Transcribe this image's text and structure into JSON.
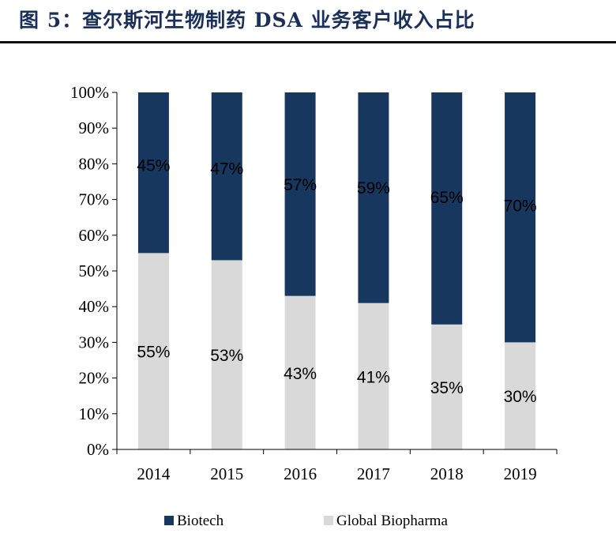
{
  "figure": {
    "title": "图 5：查尔斯河生物制药 DSA 业务客户收入占比"
  },
  "chart_data": {
    "type": "bar",
    "stacked": true,
    "categories": [
      "2014",
      "2015",
      "2016",
      "2017",
      "2018",
      "2019"
    ],
    "series": [
      {
        "name": "Global Biopharma",
        "values": [
          55,
          53,
          43,
          41,
          35,
          30
        ],
        "color": "#d9d9d9"
      },
      {
        "name": "Biotech",
        "values": [
          45,
          47,
          57,
          59,
          65,
          70
        ],
        "color": "#17375e"
      }
    ],
    "value_labels": [
      [
        "55%",
        "53%",
        "43%",
        "41%",
        "35%",
        "30%"
      ],
      [
        "45%",
        "47%",
        "57%",
        "59%",
        "65%",
        "70%"
      ]
    ],
    "ylim": [
      0,
      100
    ],
    "yticks": [
      "0%",
      "10%",
      "20%",
      "30%",
      "40%",
      "50%",
      "60%",
      "70%",
      "80%",
      "90%",
      "100%"
    ],
    "legend": [
      "Biotech",
      "Global Biopharma"
    ],
    "legend_position": "bottom",
    "grid": false
  }
}
